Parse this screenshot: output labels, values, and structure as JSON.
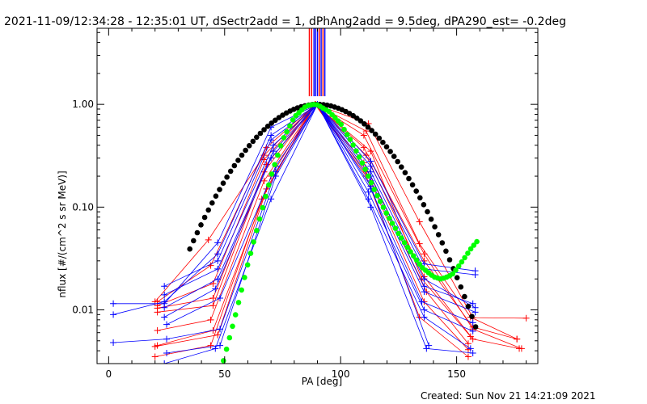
{
  "chart_data": {
    "type": "line",
    "title": "2021-11-09/12:34:28 - 12:35:01 UT, dSectr2add = 1, dPhAng2add = 9.5deg, dPA290_est= -0.2deg",
    "xlabel": "PA [deg]",
    "ylabel": "nflux [#/(cm^2 s sr MeV)]",
    "footer": "Created: Sun Nov 21 14:21:09 2021",
    "xlim": [
      -5,
      185
    ],
    "ylim": [
      0.003,
      5.5
    ],
    "yscale": "log",
    "x_ticks": [
      0,
      50,
      100,
      150
    ],
    "x_tick_labels": [
      "0",
      "50",
      "100",
      "150"
    ],
    "y_ticks": [
      0.01,
      0.1,
      1.0
    ],
    "y_tick_labels": [
      "0.01",
      "0.10",
      "1.00"
    ],
    "grid": false,
    "colors": {
      "series_red": "#ff0000",
      "series_blue": "#0000ff",
      "fit_black": "#000000",
      "fit_green": "#00ff00",
      "axes": "#000000",
      "background": "#ffffff"
    },
    "vertical_lines": [
      {
        "x": 86.5,
        "color": "#ff0000"
      },
      {
        "x": 87.5,
        "color": "#ff0000"
      },
      {
        "x": 88.5,
        "color": "#0000ff"
      },
      {
        "x": 89.2,
        "color": "#0000ff"
      },
      {
        "x": 90.0,
        "color": "#0000ff"
      },
      {
        "x": 90.8,
        "color": "#ff0000"
      },
      {
        "x": 91.6,
        "color": "#0000ff"
      },
      {
        "x": 92.4,
        "color": "#ff0000"
      },
      {
        "x": 93.2,
        "color": "#0000ff"
      }
    ],
    "series": [
      {
        "color": "#ff0000",
        "x": [
          20,
          43,
          67,
          89,
          112,
          134,
          157,
          180
        ],
        "y": [
          0.012,
          0.048,
          0.32,
          1.0,
          0.65,
          0.072,
          0.0084,
          0.0083
        ]
      },
      {
        "color": "#ff0000",
        "x": [
          21,
          44,
          68,
          89,
          111,
          134,
          156,
          176
        ],
        "y": [
          0.012,
          0.027,
          0.38,
          1.0,
          0.55,
          0.044,
          0.0085,
          0.0052
        ]
      },
      {
        "color": "#ff0000",
        "x": [
          21,
          45,
          67,
          89,
          110,
          136,
          157,
          178
        ],
        "y": [
          0.011,
          0.018,
          0.29,
          1.0,
          0.5,
          0.035,
          0.0065,
          0.0042
        ]
      },
      {
        "color": "#ff0000",
        "x": [
          21,
          45,
          68,
          89,
          110,
          136,
          157,
          176
        ],
        "y": [
          0.0104,
          0.013,
          0.26,
          1.0,
          0.38,
          0.03,
          0.0068,
          0.0052
        ]
      },
      {
        "color": "#ff0000",
        "x": [
          21,
          45,
          67,
          89,
          111,
          136,
          157,
          177
        ],
        "y": [
          0.0095,
          0.011,
          0.22,
          1.0,
          0.32,
          0.021,
          0.0052,
          0.0042
        ]
      },
      {
        "color": "#ff0000",
        "x": [
          21,
          44,
          67,
          89,
          110,
          137,
          155
        ],
        "y": [
          0.0063,
          0.008,
          0.18,
          1.0,
          0.27,
          0.015,
          0.0047
        ]
      },
      {
        "color": "#ff0000",
        "x": [
          21,
          45,
          68,
          89,
          111,
          136,
          155
        ],
        "y": [
          0.0045,
          0.0063,
          0.15,
          1.0,
          0.22,
          0.012,
          0.0041
        ]
      },
      {
        "color": "#ff0000",
        "x": [
          20,
          44,
          66,
          89,
          111,
          134,
          155
        ],
        "y": [
          0.0035,
          0.0045,
          0.12,
          1.0,
          0.2,
          0.0085,
          0.0035
        ]
      },
      {
        "color": "#ff0000",
        "x": [
          20,
          47,
          70,
          89,
          113,
          135,
          156
        ],
        "y": [
          0.0044,
          0.0057,
          0.2,
          1.0,
          0.35,
          0.02,
          0.0055
        ]
      },
      {
        "color": "#0000ff",
        "x": [
          2,
          24,
          47,
          70,
          90,
          113,
          136,
          158
        ],
        "y": [
          0.0115,
          0.0115,
          0.045,
          0.6,
          1.0,
          0.28,
          0.028,
          0.024
        ]
      },
      {
        "color": "#0000ff",
        "x": [
          2,
          24,
          47,
          70,
          90,
          113,
          136,
          158
        ],
        "y": [
          0.009,
          0.012,
          0.035,
          0.5,
          1.0,
          0.25,
          0.025,
          0.022
        ]
      },
      {
        "color": "#0000ff",
        "x": [
          24,
          47,
          70,
          90,
          113,
          136,
          158
        ],
        "y": [
          0.017,
          0.03,
          0.45,
          1.0,
          0.22,
          0.02,
          0.0105
        ]
      },
      {
        "color": "#0000ff",
        "x": [
          24,
          47,
          71,
          90,
          113,
          136,
          157
        ],
        "y": [
          0.014,
          0.025,
          0.4,
          1.0,
          0.2,
          0.017,
          0.0115
        ]
      },
      {
        "color": "#0000ff",
        "x": [
          24,
          47,
          71,
          90,
          113,
          136,
          158
        ],
        "y": [
          0.0105,
          0.02,
          0.35,
          1.0,
          0.18,
          0.015,
          0.0095
        ]
      },
      {
        "color": "#0000ff",
        "x": [
          24,
          46,
          70,
          90,
          113,
          135,
          157
        ],
        "y": [
          0.0085,
          0.016,
          0.3,
          1.0,
          0.15,
          0.012,
          0.0075
        ]
      },
      {
        "color": "#0000ff",
        "x": [
          25,
          48,
          72,
          90,
          112,
          136,
          157
        ],
        "y": [
          0.0072,
          0.013,
          0.25,
          1.0,
          0.14,
          0.01,
          0.0062
        ]
      },
      {
        "color": "#0000ff",
        "x": [
          2,
          25,
          48,
          72,
          90,
          112,
          136,
          156
        ],
        "y": [
          0.0048,
          0.0052,
          0.0065,
          0.22,
          1.0,
          0.12,
          0.0085,
          0.0042
        ]
      },
      {
        "color": "#0000ff",
        "x": [
          25,
          48,
          72,
          90,
          113,
          137,
          157
        ],
        "y": [
          0.0038,
          0.0045,
          0.2,
          1.0,
          0.1,
          0.0042,
          0.0038
        ]
      },
      {
        "color": "#0000ff",
        "x": [
          24,
          46,
          70,
          90,
          113,
          138
        ],
        "y": [
          0.003,
          0.0042,
          0.12,
          1.0,
          0.16,
          0.0045
        ]
      }
    ],
    "fits": [
      {
        "kind": "black",
        "color": "#000000",
        "mu": 90,
        "sigma": 21.6,
        "x_range": [
          35,
          159
        ],
        "step": 1.6
      },
      {
        "kind": "green",
        "color": "#00ff00",
        "x_range": [
          49.5,
          159
        ],
        "step": 1.3,
        "x": [
          49.5,
          55,
          60,
          65,
          70,
          75,
          80,
          85,
          88,
          90,
          95,
          100,
          105,
          110,
          115,
          120,
          125,
          130,
          135,
          140,
          143,
          145,
          148,
          150,
          153,
          156,
          159
        ],
        "y": [
          0.0032,
          0.0095,
          0.028,
          0.075,
          0.2,
          0.45,
          0.75,
          0.96,
          1.0,
          0.99,
          0.85,
          0.65,
          0.42,
          0.25,
          0.14,
          0.085,
          0.055,
          0.037,
          0.026,
          0.021,
          0.02,
          0.0205,
          0.022,
          0.025,
          0.031,
          0.039,
          0.047
        ]
      }
    ]
  }
}
